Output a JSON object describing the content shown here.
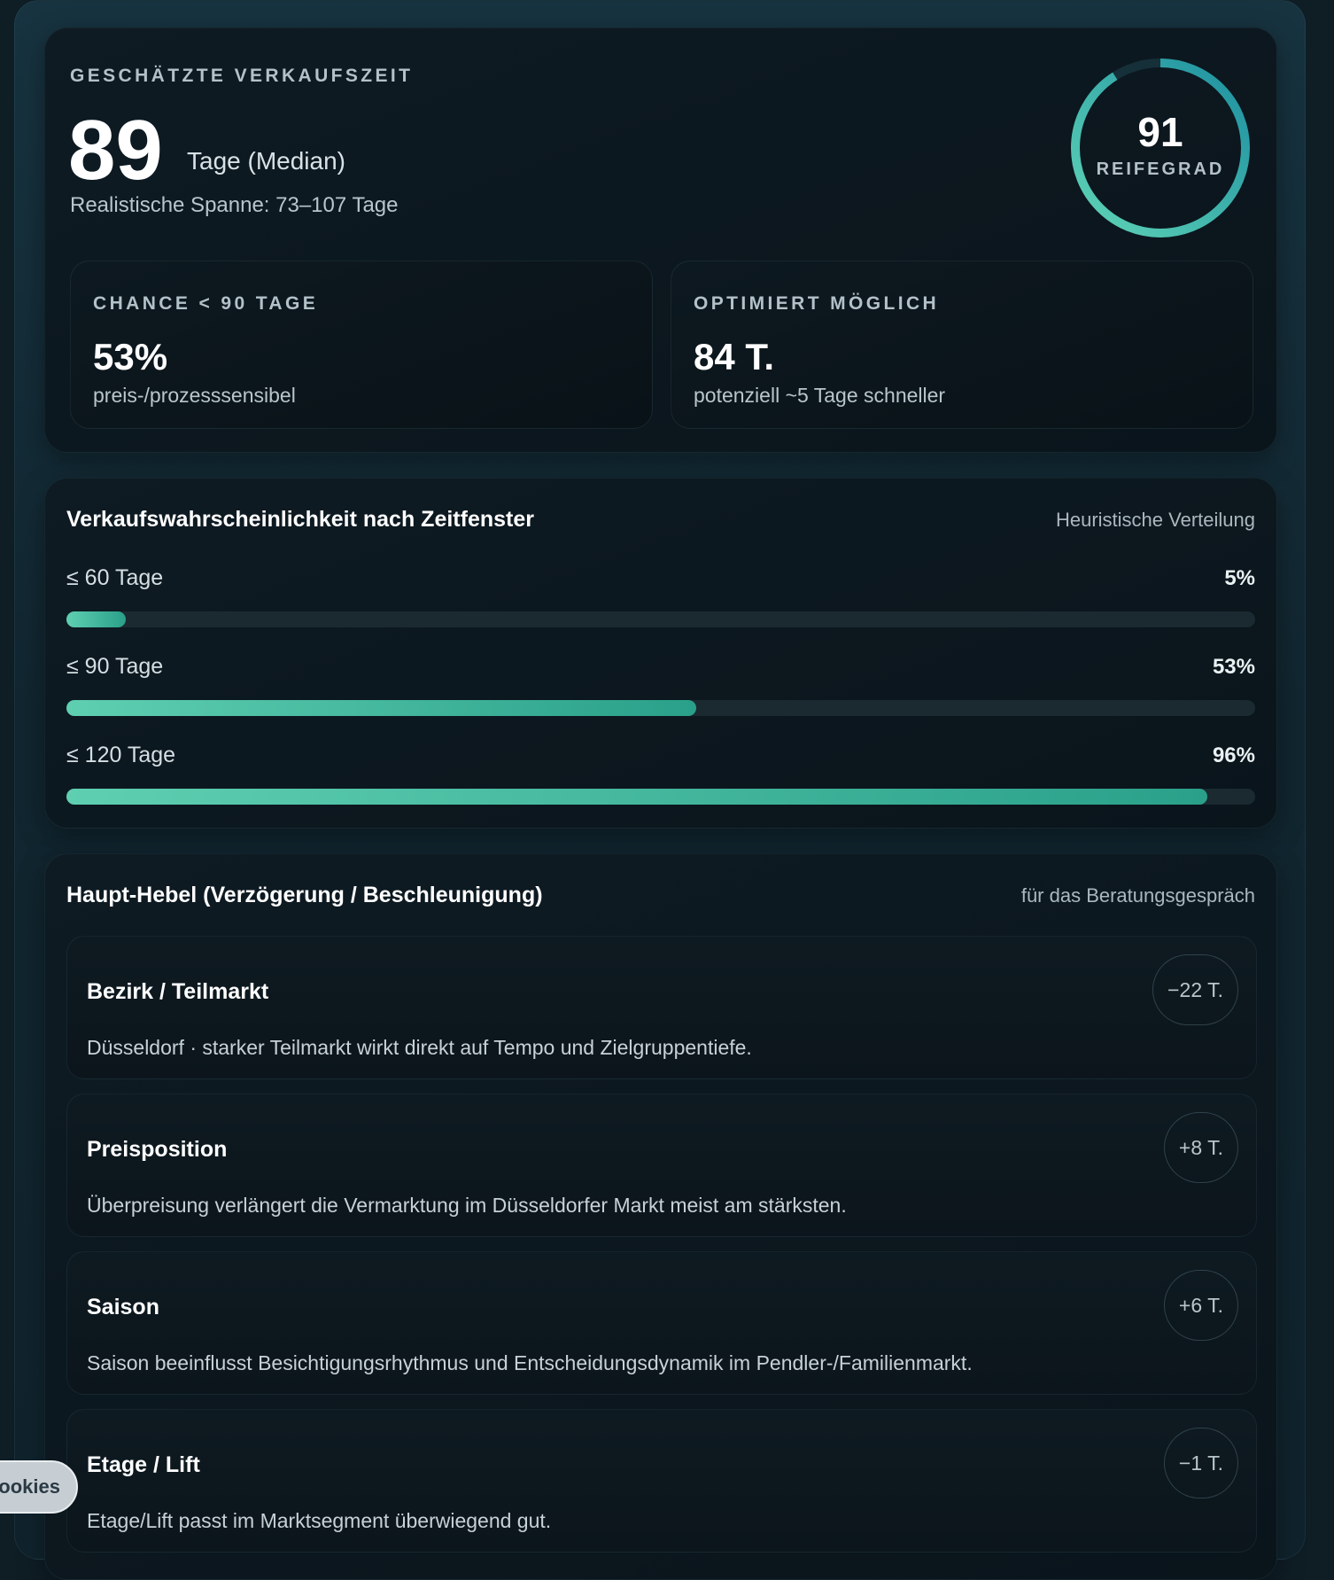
{
  "summary": {
    "eyebrow": "GESCHÄTZTE VERKAUFSZEIT",
    "median_days": "89",
    "median_unit": "Tage (Median)",
    "range_text": "Realistische Spanne: 73–107 Tage"
  },
  "gauge": {
    "value": "91",
    "label": "REIFEGRAD",
    "fraction": 0.91,
    "color_start": "#5fd4b6",
    "color_end": "#1d8fa0"
  },
  "stats": [
    {
      "eyebrow": "CHANCE < 90 TAGE",
      "value": "53%",
      "sub": "preis-/prozesssensibel"
    },
    {
      "eyebrow": "OPTIMIERT MÖGLICH",
      "value": "84 T.",
      "sub": "potenziell ~5 Tage schneller"
    }
  ],
  "probability": {
    "title": "Verkaufswahrscheinlichkeit nach Zeitfenster",
    "note": "Heuristische Verteilung",
    "rows": [
      {
        "label": "≤ 60 Tage",
        "value": "5%",
        "percent": 5
      },
      {
        "label": "≤ 90 Tage",
        "value": "53%",
        "percent": 53
      },
      {
        "label": "≤ 120 Tage",
        "value": "96%",
        "percent": 96
      }
    ]
  },
  "levers": {
    "title": "Haupt-Hebel (Verzögerung / Beschleunigung)",
    "note": "für das Beratungsgespräch",
    "items": [
      {
        "title": "Bezirk / Teilmarkt",
        "desc": "Düsseldorf · starker Teilmarkt wirkt direkt auf Tempo und Zielgruppentiefe.",
        "badge": "−22 T."
      },
      {
        "title": "Preisposition",
        "desc": "Überpreisung verlängert die Vermarktung im Düsseldorfer Markt meist am stärksten.",
        "badge": "+8 T."
      },
      {
        "title": "Saison",
        "desc": "Saison beeinflusst Besichtigungsrhythmus und Entscheidungsdynamik im Pendler-/Familienmarkt.",
        "badge": "+6 T."
      },
      {
        "title": "Etage / Lift",
        "desc": "Etage/Lift passt im Marktsegment überwiegend gut.",
        "badge": "−1 T."
      }
    ]
  },
  "cookies": {
    "label": "ookies"
  },
  "colors": {
    "accent": "#3fbf9f",
    "track": "#1b2a31"
  }
}
